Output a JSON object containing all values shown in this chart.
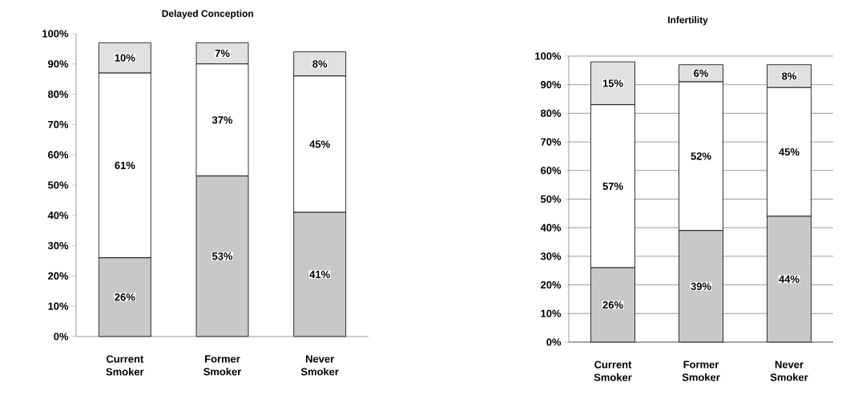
{
  "chart_data": [
    {
      "type": "bar",
      "title": "Delayed Conception",
      "stacked": true,
      "categories": [
        "Current Smoker",
        "Former Smoker",
        "Never Smoker"
      ],
      "series": [
        {
          "color": "#c8c8c8",
          "values": [
            26,
            53,
            41
          ],
          "value_labels": [
            "26%",
            "53%",
            "41%"
          ]
        },
        {
          "color": "#ffffff",
          "values": [
            61,
            37,
            45
          ],
          "value_labels": [
            "61%",
            "37%",
            "45%"
          ]
        },
        {
          "color": "#e0e0e0",
          "values": [
            10,
            7,
            8
          ],
          "value_labels": [
            "10%",
            "7%",
            "8%"
          ]
        }
      ],
      "ylim": [
        0,
        100
      ],
      "yticks": [
        {
          "value": 0,
          "label": "0%"
        },
        {
          "value": 10,
          "label": "10%"
        },
        {
          "value": 20,
          "label": "20%"
        },
        {
          "value": 30,
          "label": "30%"
        },
        {
          "value": 40,
          "label": "40%"
        },
        {
          "value": 50,
          "label": "50%"
        },
        {
          "value": 60,
          "label": "60%"
        },
        {
          "value": 70,
          "label": "70%"
        },
        {
          "value": 80,
          "label": "80%"
        },
        {
          "value": 90,
          "label": "90%"
        },
        {
          "value": 100,
          "label": "100%"
        }
      ],
      "grid": false
    },
    {
      "type": "bar",
      "title": "Infertility",
      "stacked": true,
      "categories": [
        "Current Smoker",
        "Former Smoker",
        "Never Smoker"
      ],
      "series": [
        {
          "color": "#c8c8c8",
          "values": [
            26,
            39,
            44
          ],
          "value_labels": [
            "26%",
            "39%",
            "44%"
          ]
        },
        {
          "color": "#ffffff",
          "values": [
            57,
            52,
            45
          ],
          "value_labels": [
            "57%",
            "52%",
            "45%"
          ]
        },
        {
          "color": "#e0e0e0",
          "values": [
            15,
            6,
            8
          ],
          "value_labels": [
            "15%",
            "6%",
            "8%"
          ]
        }
      ],
      "ylim": [
        0,
        100
      ],
      "yticks": [
        {
          "value": 0,
          "label": "0%"
        },
        {
          "value": 10,
          "label": "10%"
        },
        {
          "value": 20,
          "label": "20%"
        },
        {
          "value": 30,
          "label": "30%"
        },
        {
          "value": 40,
          "label": "40%"
        },
        {
          "value": 50,
          "label": "50%"
        },
        {
          "value": 60,
          "label": "60%"
        },
        {
          "value": 70,
          "label": "70%"
        },
        {
          "value": 80,
          "label": "80%"
        },
        {
          "value": 90,
          "label": "90%"
        },
        {
          "value": 100,
          "label": "100%"
        }
      ],
      "grid": "y"
    }
  ]
}
